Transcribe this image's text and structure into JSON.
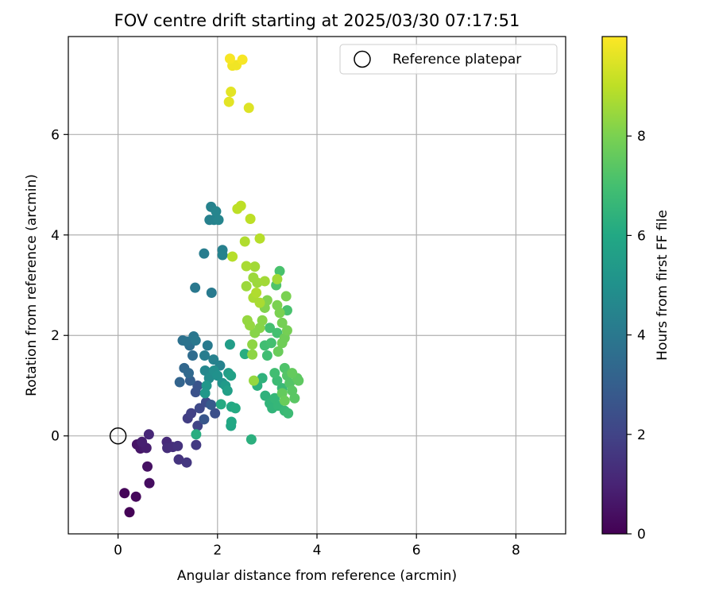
{
  "chart_data": {
    "type": "scatter",
    "title": "FOV centre drift starting at 2025/03/30 07:17:51",
    "xlabel": "Angular distance from reference (arcmin)",
    "ylabel": "Rotation from reference (arcmin)",
    "xlim": [
      -1,
      9
    ],
    "ylim": [
      -1.95,
      7.95
    ],
    "xticks": [
      "0",
      "2",
      "4",
      "6",
      "8"
    ],
    "yticks": [
      "0",
      "2",
      "4",
      "6"
    ],
    "grid": true,
    "legend": {
      "position": "top-right",
      "entries": [
        {
          "label": "Reference platepar",
          "marker": "open-circle"
        }
      ]
    },
    "reference_point": {
      "x": 0,
      "y": 0
    },
    "colorbar": {
      "label": "Hours from first FF file",
      "range": [
        0,
        10
      ],
      "ticks": [
        "0",
        "2",
        "4",
        "6",
        "8"
      ],
      "colormap": "viridis",
      "colors": [
        "#440154",
        "#482475",
        "#414487",
        "#355f8d",
        "#2a788e",
        "#21918c",
        "#22a884",
        "#44bf70",
        "#7ad151",
        "#bddf26",
        "#fde725"
      ]
    },
    "points": [
      {
        "x": 0.23,
        "y": -1.52,
        "h": 0.05
      },
      {
        "x": 0.13,
        "y": -1.14,
        "h": 0.15
      },
      {
        "x": 0.36,
        "y": -1.21,
        "h": 0.2
      },
      {
        "x": 0.63,
        "y": -0.94,
        "h": 0.35
      },
      {
        "x": 0.59,
        "y": -0.61,
        "h": 0.45
      },
      {
        "x": 0.38,
        "y": -0.17,
        "h": 0.55
      },
      {
        "x": 0.45,
        "y": -0.25,
        "h": 0.6
      },
      {
        "x": 0.52,
        "y": -0.22,
        "h": 0.7
      },
      {
        "x": 0.57,
        "y": -0.24,
        "h": 0.8
      },
      {
        "x": 0.48,
        "y": -0.12,
        "h": 0.85
      },
      {
        "x": 0.62,
        "y": 0.03,
        "h": 1.1
      },
      {
        "x": 0.98,
        "y": -0.12,
        "h": 1.2
      },
      {
        "x": 0.99,
        "y": -0.24,
        "h": 1.3
      },
      {
        "x": 1.1,
        "y": -0.22,
        "h": 1.35
      },
      {
        "x": 1.2,
        "y": -0.2,
        "h": 1.45
      },
      {
        "x": 1.22,
        "y": -0.47,
        "h": 1.5
      },
      {
        "x": 1.38,
        "y": -0.53,
        "h": 1.6
      },
      {
        "x": 1.57,
        "y": -0.18,
        "h": 1.7
      },
      {
        "x": 1.4,
        "y": 0.35,
        "h": 1.8
      },
      {
        "x": 1.47,
        "y": 0.45,
        "h": 1.9
      },
      {
        "x": 1.6,
        "y": 0.2,
        "h": 2.0
      },
      {
        "x": 1.64,
        "y": 0.55,
        "h": 2.2
      },
      {
        "x": 1.77,
        "y": 0.67,
        "h": 2.3
      },
      {
        "x": 1.95,
        "y": 0.45,
        "h": 2.4
      },
      {
        "x": 1.56,
        "y": 0.87,
        "h": 2.5
      },
      {
        "x": 1.6,
        "y": 1.0,
        "h": 2.6
      },
      {
        "x": 1.73,
        "y": 0.33,
        "h": 2.7
      },
      {
        "x": 1.87,
        "y": 0.62,
        "h": 2.8
      },
      {
        "x": 1.45,
        "y": 1.1,
        "h": 3.0
      },
      {
        "x": 1.24,
        "y": 1.07,
        "h": 3.2
      },
      {
        "x": 1.33,
        "y": 1.35,
        "h": 3.3
      },
      {
        "x": 1.42,
        "y": 1.25,
        "h": 3.4
      },
      {
        "x": 1.5,
        "y": 1.6,
        "h": 3.5
      },
      {
        "x": 1.44,
        "y": 1.8,
        "h": 3.6
      },
      {
        "x": 1.3,
        "y": 1.9,
        "h": 3.7
      },
      {
        "x": 1.38,
        "y": 1.88,
        "h": 3.8
      },
      {
        "x": 1.52,
        "y": 1.98,
        "h": 3.9
      },
      {
        "x": 1.56,
        "y": 1.9,
        "h": 4.0
      },
      {
        "x": 1.8,
        "y": 1.8,
        "h": 4.1
      },
      {
        "x": 1.74,
        "y": 1.6,
        "h": 4.2
      },
      {
        "x": 1.92,
        "y": 1.52,
        "h": 4.3
      },
      {
        "x": 2.05,
        "y": 1.4,
        "h": 4.4
      },
      {
        "x": 1.55,
        "y": 2.95,
        "h": 4.0
      },
      {
        "x": 1.88,
        "y": 2.85,
        "h": 4.1
      },
      {
        "x": 1.73,
        "y": 3.63,
        "h": 4.2
      },
      {
        "x": 2.1,
        "y": 3.7,
        "h": 4.3
      },
      {
        "x": 2.1,
        "y": 3.6,
        "h": 4.4
      },
      {
        "x": 1.84,
        "y": 4.3,
        "h": 4.3
      },
      {
        "x": 1.93,
        "y": 4.3,
        "h": 4.4
      },
      {
        "x": 2.02,
        "y": 4.3,
        "h": 4.5
      },
      {
        "x": 1.87,
        "y": 4.56,
        "h": 4.4
      },
      {
        "x": 1.97,
        "y": 4.47,
        "h": 4.5
      },
      {
        "x": 1.75,
        "y": 1.3,
        "h": 4.6
      },
      {
        "x": 1.83,
        "y": 1.15,
        "h": 4.8
      },
      {
        "x": 1.93,
        "y": 1.3,
        "h": 4.9
      },
      {
        "x": 2.0,
        "y": 1.2,
        "h": 5.0
      },
      {
        "x": 2.1,
        "y": 1.05,
        "h": 5.1
      },
      {
        "x": 1.78,
        "y": 1.0,
        "h": 5.2
      },
      {
        "x": 1.75,
        "y": 0.85,
        "h": 5.3
      },
      {
        "x": 2.16,
        "y": 1.0,
        "h": 5.4
      },
      {
        "x": 2.22,
        "y": 1.25,
        "h": 5.5
      },
      {
        "x": 2.2,
        "y": 0.9,
        "h": 5.6
      },
      {
        "x": 2.27,
        "y": 1.2,
        "h": 5.7
      },
      {
        "x": 2.25,
        "y": 1.82,
        "h": 5.5
      },
      {
        "x": 2.27,
        "y": 0.2,
        "h": 5.9
      },
      {
        "x": 2.28,
        "y": 0.28,
        "h": 6.0
      },
      {
        "x": 2.28,
        "y": 0.58,
        "h": 6.0
      },
      {
        "x": 2.36,
        "y": 0.55,
        "h": 6.1
      },
      {
        "x": 2.07,
        "y": 0.63,
        "h": 6.1
      },
      {
        "x": 1.57,
        "y": 0.03,
        "h": 6.2
      },
      {
        "x": 2.55,
        "y": 1.63,
        "h": 6.2
      },
      {
        "x": 2.68,
        "y": -0.07,
        "h": 6.3
      },
      {
        "x": 2.8,
        "y": 1.0,
        "h": 6.3
      },
      {
        "x": 2.9,
        "y": 1.15,
        "h": 6.4
      },
      {
        "x": 2.96,
        "y": 0.8,
        "h": 6.4
      },
      {
        "x": 3.05,
        "y": 0.65,
        "h": 6.5
      },
      {
        "x": 3.1,
        "y": 0.55,
        "h": 6.5
      },
      {
        "x": 3.15,
        "y": 0.75,
        "h": 6.6
      },
      {
        "x": 3.22,
        "y": 0.6,
        "h": 6.6
      },
      {
        "x": 3.3,
        "y": 0.95,
        "h": 6.7
      },
      {
        "x": 3.35,
        "y": 0.5,
        "h": 6.7
      },
      {
        "x": 3.42,
        "y": 0.45,
        "h": 6.8
      },
      {
        "x": 3.2,
        "y": 1.1,
        "h": 6.8
      },
      {
        "x": 3.15,
        "y": 1.25,
        "h": 6.9
      },
      {
        "x": 3.0,
        "y": 1.6,
        "h": 6.9
      },
      {
        "x": 2.95,
        "y": 1.8,
        "h": 6.9
      },
      {
        "x": 3.08,
        "y": 1.85,
        "h": 7.0
      },
      {
        "x": 3.2,
        "y": 2.05,
        "h": 7.0
      },
      {
        "x": 3.05,
        "y": 2.15,
        "h": 7.0
      },
      {
        "x": 3.4,
        "y": 2.5,
        "h": 7.1
      },
      {
        "x": 3.25,
        "y": 3.28,
        "h": 7.1
      },
      {
        "x": 3.18,
        "y": 3.0,
        "h": 7.2
      },
      {
        "x": 3.35,
        "y": 1.35,
        "h": 7.2
      },
      {
        "x": 3.4,
        "y": 1.2,
        "h": 7.3
      },
      {
        "x": 3.45,
        "y": 1.05,
        "h": 7.3
      },
      {
        "x": 3.5,
        "y": 0.9,
        "h": 7.4
      },
      {
        "x": 3.55,
        "y": 0.75,
        "h": 7.4
      },
      {
        "x": 3.6,
        "y": 1.15,
        "h": 7.5
      },
      {
        "x": 3.63,
        "y": 1.1,
        "h": 7.5
      },
      {
        "x": 3.5,
        "y": 1.25,
        "h": 7.6
      },
      {
        "x": 3.3,
        "y": 0.85,
        "h": 7.6
      },
      {
        "x": 3.35,
        "y": 0.7,
        "h": 7.7
      },
      {
        "x": 3.22,
        "y": 1.68,
        "h": 7.7
      },
      {
        "x": 3.3,
        "y": 1.85,
        "h": 7.8
      },
      {
        "x": 3.35,
        "y": 1.95,
        "h": 7.8
      },
      {
        "x": 3.4,
        "y": 2.1,
        "h": 7.9
      },
      {
        "x": 3.3,
        "y": 2.25,
        "h": 7.9
      },
      {
        "x": 3.25,
        "y": 2.45,
        "h": 8.0
      },
      {
        "x": 3.2,
        "y": 2.6,
        "h": 8.0
      },
      {
        "x": 3.38,
        "y": 2.78,
        "h": 8.0
      },
      {
        "x": 3.0,
        "y": 2.7,
        "h": 8.1
      },
      {
        "x": 2.95,
        "y": 2.55,
        "h": 8.1
      },
      {
        "x": 2.9,
        "y": 2.3,
        "h": 8.2
      },
      {
        "x": 2.85,
        "y": 2.15,
        "h": 8.2
      },
      {
        "x": 2.75,
        "y": 2.05,
        "h": 8.2
      },
      {
        "x": 2.7,
        "y": 1.82,
        "h": 8.3
      },
      {
        "x": 2.7,
        "y": 1.62,
        "h": 8.3
      },
      {
        "x": 2.73,
        "y": 1.1,
        "h": 8.4
      },
      {
        "x": 2.65,
        "y": 2.2,
        "h": 8.4
      },
      {
        "x": 2.6,
        "y": 2.3,
        "h": 8.4
      },
      {
        "x": 2.58,
        "y": 2.98,
        "h": 8.5
      },
      {
        "x": 2.72,
        "y": 3.15,
        "h": 8.5
      },
      {
        "x": 2.8,
        "y": 3.05,
        "h": 8.5
      },
      {
        "x": 2.95,
        "y": 3.08,
        "h": 8.6
      },
      {
        "x": 3.2,
        "y": 3.12,
        "h": 8.6
      },
      {
        "x": 2.75,
        "y": 3.37,
        "h": 8.6
      },
      {
        "x": 2.58,
        "y": 3.38,
        "h": 8.7
      },
      {
        "x": 2.72,
        "y": 2.75,
        "h": 8.7
      },
      {
        "x": 2.85,
        "y": 2.65,
        "h": 8.7
      },
      {
        "x": 2.78,
        "y": 2.85,
        "h": 8.8
      },
      {
        "x": 2.55,
        "y": 3.87,
        "h": 8.8
      },
      {
        "x": 2.85,
        "y": 3.93,
        "h": 8.9
      },
      {
        "x": 2.3,
        "y": 3.57,
        "h": 8.9
      },
      {
        "x": 2.66,
        "y": 4.32,
        "h": 9.0
      },
      {
        "x": 2.4,
        "y": 4.52,
        "h": 9.0
      },
      {
        "x": 2.47,
        "y": 4.58,
        "h": 9.0
      },
      {
        "x": 2.63,
        "y": 6.53,
        "h": 9.5
      },
      {
        "x": 2.23,
        "y": 6.65,
        "h": 9.6
      },
      {
        "x": 2.27,
        "y": 6.85,
        "h": 9.6
      },
      {
        "x": 2.3,
        "y": 7.37,
        "h": 9.8
      },
      {
        "x": 2.38,
        "y": 7.38,
        "h": 9.8
      },
      {
        "x": 2.25,
        "y": 7.51,
        "h": 9.9
      },
      {
        "x": 2.5,
        "y": 7.49,
        "h": 9.9
      }
    ]
  }
}
